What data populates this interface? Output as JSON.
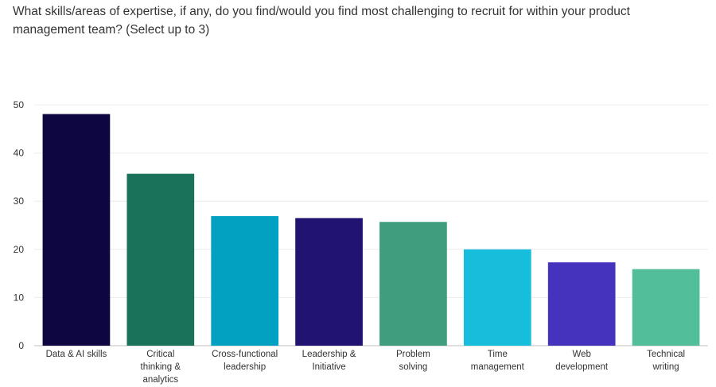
{
  "question": {
    "line1": "What skills/areas of expertise, if any, do you find/would you find most challenging to recruit for within your product",
    "line2": "management team? (Select up to 3)"
  },
  "chart_data": {
    "type": "bar",
    "title": "What skills/areas of expertise, if any, do you find/would you find most challenging to recruit for within your product management team? (Select up to 3)",
    "xlabel": "",
    "ylabel": "",
    "ylim": [
      0,
      50
    ],
    "yticks": [
      0,
      10,
      20,
      30,
      40,
      50
    ],
    "grid": true,
    "legend": "none",
    "categories": [
      [
        "Data & AI skills"
      ],
      [
        "Critical",
        "thinking &",
        "analytics"
      ],
      [
        "Cross-functional",
        "leadership"
      ],
      [
        "Leadership &",
        "Initiative"
      ],
      [
        "Problem",
        "solving"
      ],
      [
        "Time",
        "management"
      ],
      [
        "Web",
        "development"
      ],
      [
        "Technical",
        "writing"
      ]
    ],
    "values": [
      48.1,
      35.7,
      26.9,
      26.5,
      25.7,
      20.0,
      17.3,
      15.9
    ],
    "colors": [
      "#0e0640",
      "#1b725a",
      "#02a1c1",
      "#201372",
      "#409d7e",
      "#16bedc",
      "#4533bd",
      "#52bf9a"
    ]
  }
}
